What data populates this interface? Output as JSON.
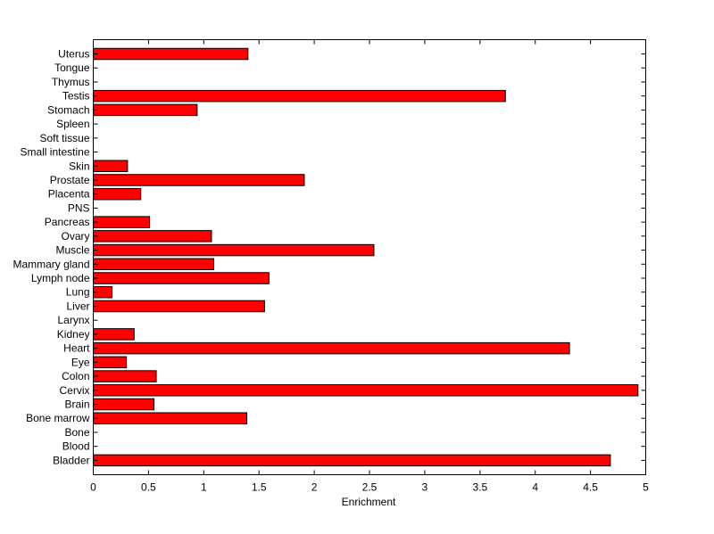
{
  "chart_data": {
    "type": "bar",
    "orientation": "horizontal",
    "title": "",
    "xlabel": "Enrichment",
    "ylabel": "",
    "xlim": [
      0,
      5
    ],
    "xticks": [
      "0",
      "0.5",
      "1",
      "1.5",
      "2",
      "2.5",
      "3",
      "3.5",
      "4",
      "4.5",
      "5"
    ],
    "grid": false,
    "bar_color": "#ff0000",
    "bar_edge_color": "#000000",
    "categories": [
      "Uterus",
      "Tongue",
      "Thymus",
      "Testis",
      "Stomach",
      "Spleen",
      "Soft tissue",
      "Small intestine",
      "Skin",
      "Prostate",
      "Placenta",
      "PNS",
      "Pancreas",
      "Ovary",
      "Muscle",
      "Mammary gland",
      "Lymph node",
      "Lung",
      "Liver",
      "Larynx",
      "Kidney",
      "Heart",
      "Eye",
      "Colon",
      "Cervix",
      "Brain",
      "Bone marrow",
      "Bone",
      "Blood",
      "Bladder"
    ],
    "values": [
      1.4,
      0,
      0,
      3.73,
      0.94,
      0,
      0,
      0,
      0.31,
      1.91,
      0.43,
      0,
      0.51,
      1.07,
      2.54,
      1.09,
      1.59,
      0.17,
      1.55,
      0,
      0.37,
      4.31,
      0.3,
      0.57,
      4.93,
      0.55,
      1.39,
      0,
      0,
      4.68
    ]
  }
}
